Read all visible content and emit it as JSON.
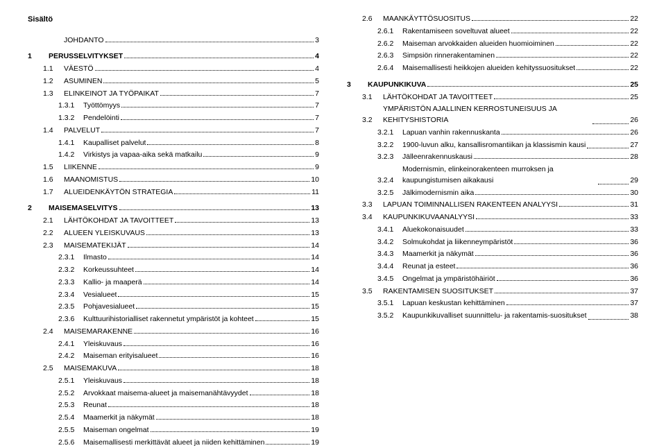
{
  "header": "Sisältö",
  "left": [
    {
      "lvl": 0,
      "num": "",
      "label": "JOHDANTO",
      "pg": "3",
      "bold": false
    },
    {
      "lvl": 1,
      "num": "1",
      "label": "PERUSSELVITYKSET",
      "pg": "4",
      "bold": true,
      "gap": true
    },
    {
      "lvl": 2,
      "num": "1.1",
      "label": "VÄESTÖ",
      "pg": "4",
      "bold": false
    },
    {
      "lvl": 2,
      "num": "1.2",
      "label": "ASUMINEN",
      "pg": "5",
      "bold": false
    },
    {
      "lvl": 2,
      "num": "1.3",
      "label": "ELINKEINOT JA TYÖPAIKAT",
      "pg": "7",
      "bold": false
    },
    {
      "lvl": 3,
      "num": "1.3.1",
      "label": "Työttömyys",
      "pg": "7",
      "bold": false
    },
    {
      "lvl": 3,
      "num": "1.3.2",
      "label": "Pendelöinti",
      "pg": "7",
      "bold": false
    },
    {
      "lvl": 2,
      "num": "1.4",
      "label": "PALVELUT",
      "pg": "7",
      "bold": false
    },
    {
      "lvl": 3,
      "num": "1.4.1",
      "label": "Kaupalliset palvelut",
      "pg": "8",
      "bold": false
    },
    {
      "lvl": 3,
      "num": "1.4.2",
      "label": "Virkistys ja vapaa-aika sekä matkailu",
      "pg": "9",
      "bold": false
    },
    {
      "lvl": 2,
      "num": "1.5",
      "label": "LIIKENNE",
      "pg": "9",
      "bold": false
    },
    {
      "lvl": 2,
      "num": "1.6",
      "label": "MAANOMISTUS",
      "pg": "10",
      "bold": false
    },
    {
      "lvl": 2,
      "num": "1.7",
      "label": "ALUEIDENKÄYTÖN STRATEGIA",
      "pg": "11",
      "bold": false
    },
    {
      "lvl": 1,
      "num": "2",
      "label": "MAISEMASELVITYS",
      "pg": "13",
      "bold": true,
      "gap": true
    },
    {
      "lvl": 2,
      "num": "2.1",
      "label": "LÄHTÖKOHDAT JA TAVOITTEET",
      "pg": "13",
      "bold": false
    },
    {
      "lvl": 2,
      "num": "2.2",
      "label": "ALUEEN YLEISKUVAUS",
      "pg": "13",
      "bold": false
    },
    {
      "lvl": 2,
      "num": "2.3",
      "label": "MAISEMATEKIJÄT",
      "pg": "14",
      "bold": false
    },
    {
      "lvl": 3,
      "num": "2.3.1",
      "label": "Ilmasto",
      "pg": "14",
      "bold": false
    },
    {
      "lvl": 3,
      "num": "2.3.2",
      "label": "Korkeussuhteet",
      "pg": "14",
      "bold": false
    },
    {
      "lvl": 3,
      "num": "2.3.3",
      "label": "Kallio- ja maaperä",
      "pg": "14",
      "bold": false
    },
    {
      "lvl": 3,
      "num": "2.3.4",
      "label": "Vesialueet",
      "pg": "15",
      "bold": false
    },
    {
      "lvl": 3,
      "num": "2.3.5",
      "label": "Pohjavesialueet",
      "pg": "15",
      "bold": false
    },
    {
      "lvl": 3,
      "num": "2.3.6",
      "label": "Kulttuurihistorialliset rakennetut ympäristöt ja kohteet",
      "pg": "15",
      "bold": false
    },
    {
      "lvl": 2,
      "num": "2.4",
      "label": "MAISEMARAKENNE",
      "pg": "16",
      "bold": false
    },
    {
      "lvl": 3,
      "num": "2.4.1",
      "label": "Yleiskuvaus",
      "pg": "16",
      "bold": false
    },
    {
      "lvl": 3,
      "num": "2.4.2",
      "label": "Maiseman erityisalueet",
      "pg": "16",
      "bold": false
    },
    {
      "lvl": 2,
      "num": "2.5",
      "label": "MAISEMAKUVA",
      "pg": "18",
      "bold": false
    },
    {
      "lvl": 3,
      "num": "2.5.1",
      "label": "Yleiskuvaus",
      "pg": "18",
      "bold": false
    },
    {
      "lvl": 3,
      "num": "2.5.2",
      "label": "Arvokkaat maisema-alueet ja maisemanähtävyydet",
      "pg": "18",
      "bold": false
    },
    {
      "lvl": 3,
      "num": "2.5.3",
      "label": "Reunat",
      "pg": "18",
      "bold": false
    },
    {
      "lvl": 3,
      "num": "2.5.4",
      "label": "Maamerkit ja näkymät",
      "pg": "18",
      "bold": false
    },
    {
      "lvl": 3,
      "num": "2.5.5",
      "label": "Maiseman ongelmat",
      "pg": "19",
      "bold": false
    },
    {
      "lvl": 3,
      "num": "2.5.6",
      "label": "Maisemallisesti merkittävät alueet ja niiden kehittäminen",
      "pg": "19",
      "bold": false
    }
  ],
  "right": [
    {
      "lvl": 2,
      "num": "2.6",
      "label": "MAANKÄYTTÖSUOSITUS",
      "pg": "22",
      "bold": false
    },
    {
      "lvl": 3,
      "num": "2.6.1",
      "label": "Rakentamiseen soveltuvat alueet",
      "pg": "22",
      "bold": false
    },
    {
      "lvl": 3,
      "num": "2.6.2",
      "label": "Maiseman arvokkaiden alueiden huomioiminen",
      "pg": "22",
      "bold": false
    },
    {
      "lvl": 3,
      "num": "2.6.3",
      "label": "Simpsiön rinnerakentaminen",
      "pg": "22",
      "bold": false
    },
    {
      "lvl": 3,
      "num": "2.6.4",
      "label": "Maisemallisesti heikkojen alueiden kehityssuositukset",
      "pg": "22",
      "bold": false
    },
    {
      "lvl": 1,
      "num": "3",
      "label": "KAUPUNKIKUVA",
      "pg": "25",
      "bold": true,
      "gap": true
    },
    {
      "lvl": 2,
      "num": "3.1",
      "label": "LÄHTÖKOHDAT JA TAVOITTEET",
      "pg": "25",
      "bold": false
    },
    {
      "lvl": 2,
      "num": "3.2",
      "label": "YMPÄRISTÖN AJALLINEN KERROSTUNEISUUS JA KEHITYSHISTORIA",
      "pg": "26",
      "bold": false,
      "wrap": true
    },
    {
      "lvl": 3,
      "num": "3.2.1",
      "label": "Lapuan vanhin rakennuskanta",
      "pg": "26",
      "bold": false
    },
    {
      "lvl": 3,
      "num": "3.2.2",
      "label": "1900-luvun alku, kansallisromantiikan ja klassismin kausi",
      "pg": "27",
      "bold": false,
      "wrap": true
    },
    {
      "lvl": 3,
      "num": "3.2.3",
      "label": "Jälleenrakennuskausi",
      "pg": "28",
      "bold": false
    },
    {
      "lvl": 3,
      "num": "3.2.4",
      "label": "Modernismin, elinkeinorakenteen murroksen ja kaupungistumisen aikakausi",
      "pg": "29",
      "bold": false,
      "wrap": true
    },
    {
      "lvl": 3,
      "num": "3.2.5",
      "label": "Jälkimodernismin aika",
      "pg": "30",
      "bold": false
    },
    {
      "lvl": 2,
      "num": "3.3",
      "label": "LAPUAN TOIMINNALLISEN RAKENTEEN ANALYYSI",
      "pg": "31",
      "bold": false
    },
    {
      "lvl": 2,
      "num": "3.4",
      "label": "KAUPUNKIKUVAANALYYSI",
      "pg": "33",
      "bold": false
    },
    {
      "lvl": 3,
      "num": "3.4.1",
      "label": "Aluekokonaisuudet",
      "pg": "33",
      "bold": false
    },
    {
      "lvl": 3,
      "num": "3.4.2",
      "label": "Solmukohdat ja liikenneympäristöt",
      "pg": "36",
      "bold": false
    },
    {
      "lvl": 3,
      "num": "3.4.3",
      "label": "Maamerkit ja näkymät",
      "pg": "36",
      "bold": false
    },
    {
      "lvl": 3,
      "num": "3.4.4",
      "label": "Reunat ja esteet",
      "pg": "36",
      "bold": false
    },
    {
      "lvl": 3,
      "num": "3.4.5",
      "label": "Ongelmat ja ympäristöhäiriöt",
      "pg": "36",
      "bold": false
    },
    {
      "lvl": 2,
      "num": "3.5",
      "label": "RAKENTAMISEN SUOSITUKSET",
      "pg": "37",
      "bold": false
    },
    {
      "lvl": 3,
      "num": "3.5.1",
      "label": "Lapuan keskustan kehittäminen",
      "pg": "37",
      "bold": false
    },
    {
      "lvl": 3,
      "num": "3.5.2",
      "label": "Kaupunkikuvalliset suunnittelu- ja rakentamis-suositukset",
      "pg": "38",
      "bold": false,
      "wrap": true
    }
  ]
}
